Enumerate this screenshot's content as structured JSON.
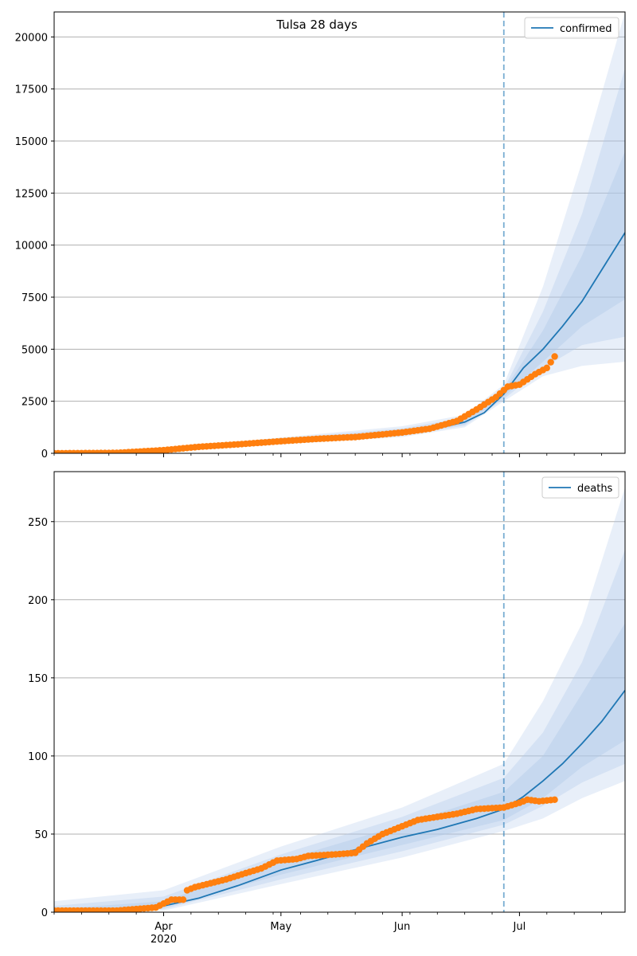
{
  "chart_data": [
    {
      "type": "line",
      "title": "Tulsa 28 days",
      "xlabel": "",
      "ylabel": "",
      "x_ticks": [
        "Apr\n2020",
        "May",
        "Jun",
        "Jul"
      ],
      "x_range": [
        "2020-03-04",
        "2020-07-28"
      ],
      "ylim": [
        0,
        21200
      ],
      "y_ticks": [
        0,
        2500,
        5000,
        7500,
        10000,
        12500,
        15000,
        17500,
        20000
      ],
      "grid": "y",
      "legend": {
        "entries": [
          "confirmed"
        ],
        "placement": "top-right"
      },
      "forecast_start": "2020-06-27",
      "colors": {
        "model": "#1f77b4",
        "observed": "#ff7f0e",
        "band": "#aec7e8"
      },
      "series": [
        {
          "name": "confirmed",
          "kind": "model-median",
          "points": [
            [
              "2020-03-04",
              0
            ],
            [
              "2020-03-20",
              20
            ],
            [
              "2020-04-01",
              120
            ],
            [
              "2020-04-10",
              280
            ],
            [
              "2020-04-20",
              420
            ],
            [
              "2020-05-01",
              580
            ],
            [
              "2020-05-10",
              680
            ],
            [
              "2020-05-20",
              790
            ],
            [
              "2020-06-01",
              1000
            ],
            [
              "2020-06-10",
              1200
            ],
            [
              "2020-06-17",
              1500
            ],
            [
              "2020-06-22",
              1950
            ],
            [
              "2020-06-27",
              2850
            ],
            [
              "2020-07-02",
              4100
            ],
            [
              "2020-07-07",
              5000
            ],
            [
              "2020-07-12",
              6100
            ],
            [
              "2020-07-17",
              7300
            ],
            [
              "2020-07-22",
              8800
            ],
            [
              "2020-07-28",
              10600
            ]
          ]
        },
        {
          "name": "",
          "kind": "observed",
          "points": [
            [
              "2020-03-04",
              0
            ],
            [
              "2020-03-20",
              20
            ],
            [
              "2020-04-01",
              150
            ],
            [
              "2020-04-10",
              310
            ],
            [
              "2020-04-20",
              430
            ],
            [
              "2020-05-01",
              580
            ],
            [
              "2020-05-10",
              690
            ],
            [
              "2020-05-20",
              780
            ],
            [
              "2020-06-01",
              1000
            ],
            [
              "2020-06-08",
              1180
            ],
            [
              "2020-06-15",
              1550
            ],
            [
              "2020-06-20",
              2100
            ],
            [
              "2020-06-25",
              2700
            ],
            [
              "2020-06-28",
              3200
            ],
            [
              "2020-07-01",
              3300
            ],
            [
              "2020-07-05",
              3800
            ],
            [
              "2020-07-08",
              4100
            ],
            [
              "2020-07-10",
              4650
            ]
          ]
        }
      ],
      "bands": [
        {
          "level": "outer",
          "points": [
            [
              "2020-03-04",
              0,
              20
            ],
            [
              "2020-04-01",
              60,
              200
            ],
            [
              "2020-05-01",
              430,
              760
            ],
            [
              "2020-06-01",
              780,
              1300
            ],
            [
              "2020-06-17",
              1250,
              1850
            ],
            [
              "2020-06-27",
              2500,
              3300
            ],
            [
              "2020-07-07",
              3700,
              8000
            ],
            [
              "2020-07-17",
              4200,
              14000
            ],
            [
              "2020-07-28",
              4400,
              21200
            ]
          ]
        },
        {
          "level": "middle",
          "points": [
            [
              "2020-03-04",
              0,
              10
            ],
            [
              "2020-04-01",
              80,
              170
            ],
            [
              "2020-05-01",
              480,
              700
            ],
            [
              "2020-06-01",
              850,
              1200
            ],
            [
              "2020-06-17",
              1330,
              1720
            ],
            [
              "2020-06-27",
              2600,
              3100
            ],
            [
              "2020-07-07",
              4100,
              6800
            ],
            [
              "2020-07-17",
              5200,
              11500
            ],
            [
              "2020-07-28",
              5600,
              18500
            ]
          ]
        },
        {
          "level": "inner",
          "points": [
            [
              "2020-03-04",
              0,
              5
            ],
            [
              "2020-04-01",
              95,
              150
            ],
            [
              "2020-05-01",
              520,
              650
            ],
            [
              "2020-06-01",
              920,
              1100
            ],
            [
              "2020-06-17",
              1400,
              1620
            ],
            [
              "2020-06-27",
              2700,
              3000
            ],
            [
              "2020-07-07",
              4400,
              5900
            ],
            [
              "2020-07-17",
              6100,
              9500
            ],
            [
              "2020-07-28",
              7400,
              14500
            ]
          ]
        }
      ]
    },
    {
      "type": "line",
      "title": "",
      "xlabel": "",
      "ylabel": "",
      "x_ticks": [
        "Apr\n2020",
        "May",
        "Jun",
        "Jul"
      ],
      "x_range": [
        "2020-03-04",
        "2020-07-28"
      ],
      "ylim": [
        0,
        282
      ],
      "y_ticks": [
        0,
        50,
        100,
        150,
        200,
        250
      ],
      "grid": "y",
      "legend": {
        "entries": [
          "deaths"
        ],
        "placement": "top-right"
      },
      "forecast_start": "2020-06-27",
      "colors": {
        "model": "#1f77b4",
        "observed": "#ff7f0e",
        "band": "#aec7e8"
      },
      "series": [
        {
          "name": "deaths",
          "kind": "model-median",
          "points": [
            [
              "2020-03-04",
              0
            ],
            [
              "2020-03-20",
              1
            ],
            [
              "2020-04-01",
              4
            ],
            [
              "2020-04-10",
              9
            ],
            [
              "2020-04-20",
              17
            ],
            [
              "2020-05-01",
              27
            ],
            [
              "2020-05-10",
              33
            ],
            [
              "2020-05-20",
              40
            ],
            [
              "2020-06-01",
              48
            ],
            [
              "2020-06-10",
              53
            ],
            [
              "2020-06-20",
              60
            ],
            [
              "2020-06-27",
              66
            ],
            [
              "2020-07-02",
              74
            ],
            [
              "2020-07-07",
              84
            ],
            [
              "2020-07-12",
              95
            ],
            [
              "2020-07-17",
              108
            ],
            [
              "2020-07-22",
              122
            ],
            [
              "2020-07-28",
              142
            ]
          ]
        },
        {
          "name": "",
          "kind": "observed",
          "points": [
            [
              "2020-03-04",
              1
            ],
            [
              "2020-03-20",
              1
            ],
            [
              "2020-03-30",
              3
            ],
            [
              "2020-04-03",
              8
            ],
            [
              "2020-04-06",
              8
            ],
            [
              "2020-04-07",
              14
            ],
            [
              "2020-04-09",
              16
            ],
            [
              "2020-04-17",
              21
            ],
            [
              "2020-04-22",
              25
            ],
            [
              "2020-04-26",
              28
            ],
            [
              "2020-04-30",
              33
            ],
            [
              "2020-05-05",
              34
            ],
            [
              "2020-05-08",
              36
            ],
            [
              "2020-05-15",
              37
            ],
            [
              "2020-05-20",
              38
            ],
            [
              "2020-05-23",
              44
            ],
            [
              "2020-05-27",
              50
            ],
            [
              "2020-06-01",
              55
            ],
            [
              "2020-06-05",
              59
            ],
            [
              "2020-06-10",
              61
            ],
            [
              "2020-06-15",
              63
            ],
            [
              "2020-06-20",
              66
            ],
            [
              "2020-06-27",
              67
            ],
            [
              "2020-07-01",
              70
            ],
            [
              "2020-07-03",
              72
            ],
            [
              "2020-07-06",
              71
            ],
            [
              "2020-07-10",
              72
            ]
          ]
        }
      ],
      "bands": [
        {
          "level": "outer",
          "points": [
            [
              "2020-03-04",
              0,
              7
            ],
            [
              "2020-04-01",
              1,
              14
            ],
            [
              "2020-05-01",
              18,
              42
            ],
            [
              "2020-06-01",
              35,
              67
            ],
            [
              "2020-06-27",
              52,
              95
            ],
            [
              "2020-07-07",
              60,
              135
            ],
            [
              "2020-07-17",
              73,
              185
            ],
            [
              "2020-07-28",
              84,
              272
            ]
          ]
        },
        {
          "level": "middle",
          "points": [
            [
              "2020-03-04",
              0,
              4
            ],
            [
              "2020-04-01",
              2,
              10
            ],
            [
              "2020-05-01",
              21,
              37
            ],
            [
              "2020-06-01",
              39,
              61
            ],
            [
              "2020-06-27",
              56,
              86
            ],
            [
              "2020-07-07",
              68,
              115
            ],
            [
              "2020-07-17",
              83,
              160
            ],
            [
              "2020-07-28",
              95,
              232
            ]
          ]
        },
        {
          "level": "inner",
          "points": [
            [
              "2020-03-04",
              0,
              2
            ],
            [
              "2020-04-01",
              3,
              7
            ],
            [
              "2020-05-01",
              24,
              33
            ],
            [
              "2020-06-01",
              43,
              56
            ],
            [
              "2020-06-27",
              59,
              77
            ],
            [
              "2020-07-07",
              73,
              100
            ],
            [
              "2020-07-17",
              93,
              140
            ],
            [
              "2020-07-28",
              110,
              185
            ]
          ]
        }
      ]
    }
  ]
}
